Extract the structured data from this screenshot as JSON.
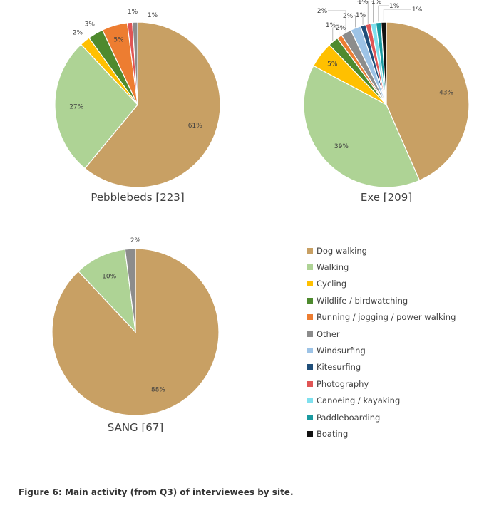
{
  "chart_data": {
    "type": "pie",
    "categories": [
      "Dog walking",
      "Walking",
      "Cycling",
      "Wildlife / birdwatching",
      "Running / jogging / power walking",
      "Other",
      "Windsurfing",
      "Kitesurfing",
      "Photography",
      "Canoeing / kayaking",
      "Paddleboarding",
      "Boating"
    ],
    "colors": [
      "#C8A064",
      "#AED395",
      "#FFC000",
      "#4E8A2E",
      "#ED7D31",
      "#8C8C8C",
      "#9DC3E6",
      "#1F4E79",
      "#E05555",
      "#7FE0EE",
      "#1A9AA0",
      "#111111"
    ],
    "legend": "right",
    "pies": [
      {
        "title": "Pebblebeds [223]",
        "slices": [
          {
            "category": "Dog walking",
            "value": 61,
            "label": "61%"
          },
          {
            "category": "Walking",
            "value": 27,
            "label": "27%"
          },
          {
            "category": "Cycling",
            "value": 2,
            "label": "2%"
          },
          {
            "category": "Wildlife / birdwatching",
            "value": 3,
            "label": "3%"
          },
          {
            "category": "Running / jogging / power walking",
            "value": 5,
            "label": "5%"
          },
          {
            "category": "Photography",
            "value": 1,
            "label": "1%"
          },
          {
            "category": "Other",
            "value": 1,
            "label": "1%"
          }
        ]
      },
      {
        "title": "Exe [209]",
        "slices": [
          {
            "category": "Dog walking",
            "value": 43,
            "label": "43%"
          },
          {
            "category": "Walking",
            "value": 39,
            "label": "39%"
          },
          {
            "category": "Cycling",
            "value": 5,
            "label": "5%"
          },
          {
            "category": "Wildlife / birdwatching",
            "value": 2,
            "label": "2%"
          },
          {
            "category": "Running / jogging / power walking",
            "value": 1,
            "label": "1%"
          },
          {
            "category": "Other",
            "value": 2,
            "label": "2%"
          },
          {
            "category": "Windsurfing",
            "value": 2,
            "label": "2%"
          },
          {
            "category": "Kitesurfing",
            "value": 1,
            "label": "1%"
          },
          {
            "category": "Photography",
            "value": 1,
            "label": "1%"
          },
          {
            "category": "Canoeing / kayaking",
            "value": 1,
            "label": "1%"
          },
          {
            "category": "Paddleboarding",
            "value": 1,
            "label": "1%"
          },
          {
            "category": "Boating",
            "value": 1,
            "label": "1%"
          }
        ]
      },
      {
        "title": "SANG [67]",
        "slices": [
          {
            "category": "Dog walking",
            "value": 88,
            "label": "88%"
          },
          {
            "category": "Walking",
            "value": 10,
            "label": "10%"
          },
          {
            "category": "Other",
            "value": 2,
            "label": "2%"
          }
        ]
      }
    ]
  },
  "caption": "Figure 6: Main activity (from Q3) of interviewees by site."
}
